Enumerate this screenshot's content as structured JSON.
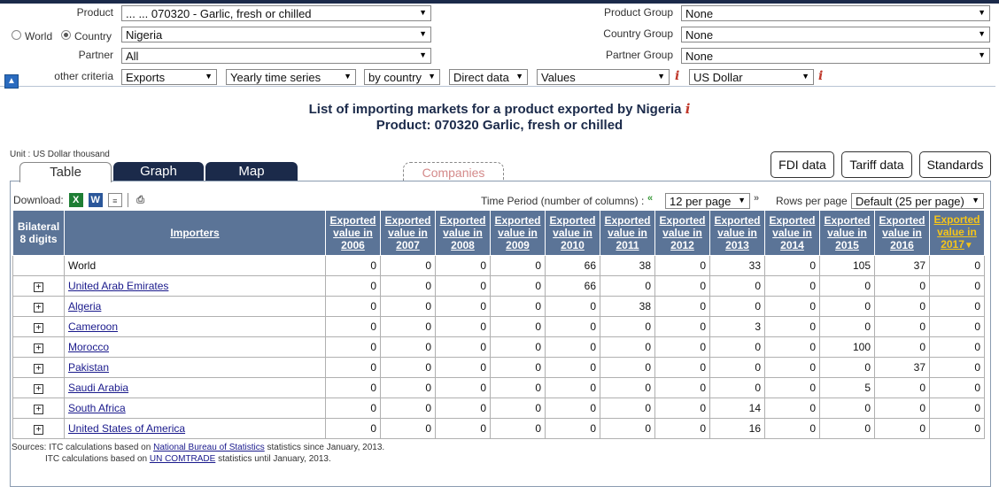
{
  "criteria": {
    "product_label": "Product",
    "product_value": "... ... 070320 - Garlic, fresh or chilled",
    "world_label": "World",
    "country_label": "Country",
    "country_value": "Nigeria",
    "partner_label": "Partner",
    "partner_value": "All",
    "product_group_label": "Product Group",
    "product_group_value": "None",
    "country_group_label": "Country Group",
    "country_group_value": "None",
    "partner_group_label": "Partner Group",
    "partner_group_value": "None",
    "other_label": "other criteria",
    "trade_flow": "Exports",
    "series": "Yearly time series",
    "by": "by country",
    "data_type": "Direct data",
    "measure": "Values",
    "currency": "US Dollar",
    "info_glyph": "i"
  },
  "title": {
    "line1": "List of importing markets for a product exported by Nigeria",
    "line2": "Product: 070320 Garlic, fresh or chilled"
  },
  "unit": "Unit : US Dollar thousand",
  "tabs": {
    "table": "Table",
    "graph": "Graph",
    "map": "Map",
    "companies": "Companies"
  },
  "buttons": {
    "fdi": "FDI data",
    "tariff": "Tariff data",
    "standards": "Standards"
  },
  "download_label": "Download:",
  "time_period_label": "Time Period (number of columns) :",
  "time_period_value": "12 per page",
  "rows_label": "Rows per page",
  "rows_value": "Default (25 per page)",
  "table": {
    "bilateral_header": "Bilateral 8 digits",
    "importers_header": "Importers",
    "year_prefix": "Exported value in",
    "years": [
      "2006",
      "2007",
      "2008",
      "2009",
      "2010",
      "2011",
      "2012",
      "2013",
      "2014",
      "2015",
      "2016",
      "2017"
    ],
    "sort_glyph": "▼",
    "rows": [
      {
        "name": "World",
        "link": false,
        "values": [
          "0",
          "0",
          "0",
          "0",
          "66",
          "38",
          "0",
          "33",
          "0",
          "105",
          "37",
          "0"
        ]
      },
      {
        "name": "United Arab Emirates",
        "link": true,
        "values": [
          "0",
          "0",
          "0",
          "0",
          "66",
          "0",
          "0",
          "0",
          "0",
          "0",
          "0",
          "0"
        ]
      },
      {
        "name": "Algeria",
        "link": true,
        "values": [
          "0",
          "0",
          "0",
          "0",
          "0",
          "38",
          "0",
          "0",
          "0",
          "0",
          "0",
          "0"
        ]
      },
      {
        "name": "Cameroon",
        "link": true,
        "values": [
          "0",
          "0",
          "0",
          "0",
          "0",
          "0",
          "0",
          "3",
          "0",
          "0",
          "0",
          "0"
        ]
      },
      {
        "name": "Morocco",
        "link": true,
        "values": [
          "0",
          "0",
          "0",
          "0",
          "0",
          "0",
          "0",
          "0",
          "0",
          "100",
          "0",
          "0"
        ]
      },
      {
        "name": "Pakistan",
        "link": true,
        "values": [
          "0",
          "0",
          "0",
          "0",
          "0",
          "0",
          "0",
          "0",
          "0",
          "0",
          "37",
          "0"
        ]
      },
      {
        "name": "Saudi Arabia",
        "link": true,
        "values": [
          "0",
          "0",
          "0",
          "0",
          "0",
          "0",
          "0",
          "0",
          "0",
          "5",
          "0",
          "0"
        ]
      },
      {
        "name": "South Africa",
        "link": true,
        "values": [
          "0",
          "0",
          "0",
          "0",
          "0",
          "0",
          "0",
          "14",
          "0",
          "0",
          "0",
          "0"
        ]
      },
      {
        "name": "United States of America",
        "link": true,
        "values": [
          "0",
          "0",
          "0",
          "0",
          "0",
          "0",
          "0",
          "16",
          "0",
          "0",
          "0",
          "0"
        ]
      }
    ]
  },
  "sources": {
    "l1_pre": "Sources: ITC calculations based on ",
    "l1_link": "National Bureau of Statistics",
    "l1_post": " statistics since January, 2013.",
    "l2_pre": "ITC calculations based on ",
    "l2_link": "UN COMTRADE",
    "l2_post": " statistics until January, 2013."
  }
}
